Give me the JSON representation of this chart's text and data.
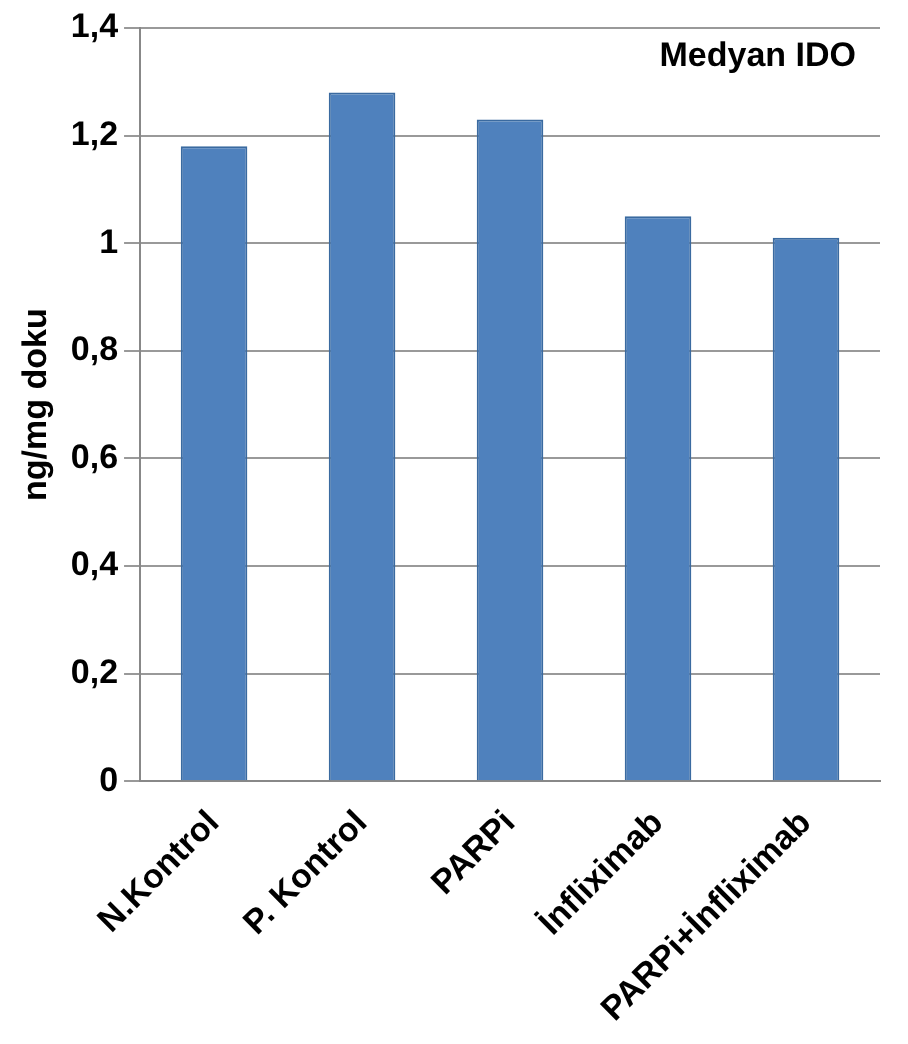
{
  "chart_data": {
    "type": "bar",
    "title": "Medyan IDO",
    "ylabel": "ng/mg doku",
    "categories": [
      "N.Kontrol",
      "P. Kontrol",
      "PARPi",
      "İnfliximab",
      "PARPi+İnfliximab"
    ],
    "values": [
      1.18,
      1.28,
      1.23,
      1.05,
      1.01
    ],
    "color": "#4f81bd",
    "ylim": [
      0,
      1.4
    ],
    "yticks": [
      {
        "value": 0,
        "label": "0"
      },
      {
        "value": 0.2,
        "label": "0,2"
      },
      {
        "value": 0.4,
        "label": "0,4"
      },
      {
        "value": 0.6,
        "label": "0,6"
      },
      {
        "value": 0.8,
        "label": "0,8"
      },
      {
        "value": 1,
        "label": "1"
      },
      {
        "value": 1.2,
        "label": "1,2"
      },
      {
        "value": 1.4,
        "label": "1,4"
      }
    ],
    "grid": "y",
    "legend": false
  }
}
